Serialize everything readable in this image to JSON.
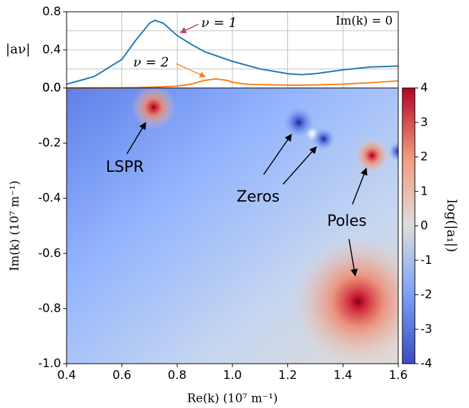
{
  "chart_data": [
    {
      "type": "line",
      "ylabel": "|aν|",
      "annotation": "Im(k) = 0",
      "xlim": [
        0.4,
        1.6
      ],
      "ylim": [
        0,
        0.8
      ],
      "yticks": [
        {
          "value": 0,
          "label": "0.0"
        },
        0.4,
        0.8
      ],
      "xgrid": [
        0.6,
        0.8,
        1.0,
        1.2,
        1.4
      ],
      "ygrid": [
        0.2,
        0.4,
        0.6
      ],
      "grid": true,
      "x": [
        0.4,
        0.5,
        0.6,
        0.65,
        0.7,
        0.72,
        0.75,
        0.8,
        0.85,
        0.9,
        0.94,
        0.98,
        1.0,
        1.05,
        1.1,
        1.2,
        1.25,
        1.3,
        1.4,
        1.5,
        1.6
      ],
      "series": [
        {
          "name": "ν = 1",
          "color": "#1f77b4",
          "values": [
            0.04,
            0.12,
            0.3,
            0.5,
            0.68,
            0.71,
            0.68,
            0.55,
            0.46,
            0.38,
            0.34,
            0.3,
            0.28,
            0.24,
            0.2,
            0.15,
            0.14,
            0.15,
            0.19,
            0.22,
            0.23
          ]
        },
        {
          "name": "ν = 2",
          "color": "#ff7f0e",
          "values": [
            0,
            0.001,
            0.002,
            0.004,
            0.008,
            0.01,
            0.013,
            0.02,
            0.04,
            0.08,
            0.095,
            0.08,
            0.06,
            0.04,
            0.035,
            0.03,
            0.03,
            0.032,
            0.04,
            0.055,
            0.075
          ]
        }
      ]
    },
    {
      "type": "heatmap",
      "xlabel": "Re(k) (10⁷ m⁻¹)",
      "ylabel": "Im(k) (10⁷ m⁻¹)",
      "xlim": [
        0.4,
        1.6
      ],
      "ylim": [
        -1.0,
        0.0
      ],
      "xticks": [
        0.4,
        0.6,
        0.8,
        {
          "value": 1,
          "label": "1.0"
        },
        1.2,
        1.4,
        1.6
      ],
      "yticks": [
        {
          "value": 0,
          "label": "0.0"
        },
        -0.2,
        -0.4,
        -0.6,
        -0.8,
        {
          "value": -1,
          "label": "-1.0"
        }
      ],
      "colorbar": {
        "label": "log(|a₁|)",
        "lim": [
          -4,
          4
        ],
        "ticks": [
          -4,
          -3,
          -2,
          -1,
          0,
          1,
          2,
          3,
          4
        ]
      },
      "poles": {
        "x": [
          0.715,
          1.505,
          1.455
        ],
        "y": [
          -0.07,
          -0.245,
          -0.775
        ]
      },
      "zeros": {
        "x": [
          1.24,
          1.33,
          1.6
        ],
        "y": [
          -0.125,
          -0.185,
          -0.23
        ]
      },
      "annotations": [
        "LSPR",
        "Zeros",
        "Poles"
      ]
    }
  ]
}
